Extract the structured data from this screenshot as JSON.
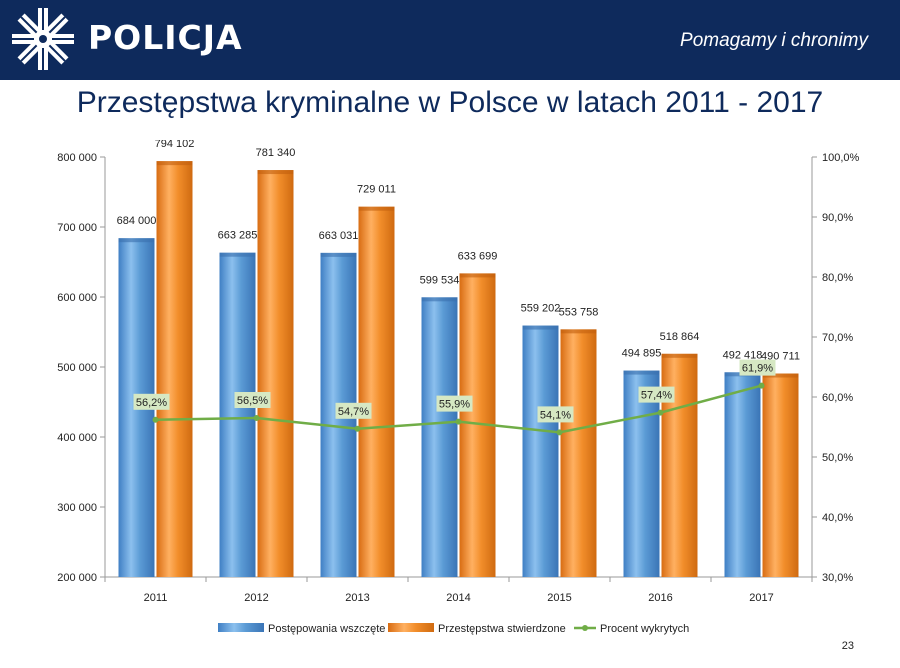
{
  "header": {
    "brand": "POLICJA",
    "slogan": "Pomagamy i chronimy",
    "logo_icon": "police-star-icon",
    "background": "#0e2a5c"
  },
  "title": "Przestępstwa kryminalne w Polsce w latach 2011 - 2017",
  "page_number": "23",
  "chart_data": {
    "type": "bar",
    "categories": [
      "2011",
      "2012",
      "2013",
      "2014",
      "2015",
      "2016",
      "2017"
    ],
    "series": [
      {
        "name": "Postępowania wszczęte",
        "type": "bar",
        "axis": "left",
        "color": "#5b9bd5",
        "values": [
          684000,
          663285,
          663031,
          599534,
          559202,
          494895,
          492418
        ],
        "labels": [
          "684 000",
          "663 285",
          "663 031",
          "599 534",
          "559 202",
          "494 895",
          "492 418"
        ]
      },
      {
        "name": "Przestępstwa stwierdzone",
        "type": "bar",
        "axis": "left",
        "color": "#f28e2b",
        "values": [
          794102,
          781340,
          729011,
          633699,
          553758,
          518864,
          490711
        ],
        "labels": [
          "794 102",
          "781 340",
          "729 011",
          "633 699",
          "553 758",
          "518 864",
          "490 711"
        ]
      },
      {
        "name": "Procent wykrytych",
        "type": "line",
        "axis": "right",
        "color": "#70ad47",
        "values": [
          56.2,
          56.5,
          54.7,
          55.9,
          54.1,
          57.4,
          61.9
        ],
        "labels": [
          "56,2%",
          "56,5%",
          "54,7%",
          "55,9%",
          "54,1%",
          "57,4%",
          "61,9%"
        ]
      }
    ],
    "y_left": {
      "ylim": [
        200000,
        800000
      ],
      "ticks": [
        200000,
        300000,
        400000,
        500000,
        600000,
        700000,
        800000
      ],
      "tick_labels": [
        "200 000",
        "300 000",
        "400 000",
        "500 000",
        "600 000",
        "700 000",
        "800 000"
      ]
    },
    "y_right": {
      "ylim": [
        30,
        100
      ],
      "ticks": [
        30,
        40,
        50,
        60,
        70,
        80,
        90,
        100
      ],
      "tick_labels": [
        "30,0%",
        "40,0%",
        "50,0%",
        "60,0%",
        "70,0%",
        "80,0%",
        "90,0%",
        "100,0%"
      ]
    },
    "grid": false,
    "legend_position": "bottom"
  }
}
